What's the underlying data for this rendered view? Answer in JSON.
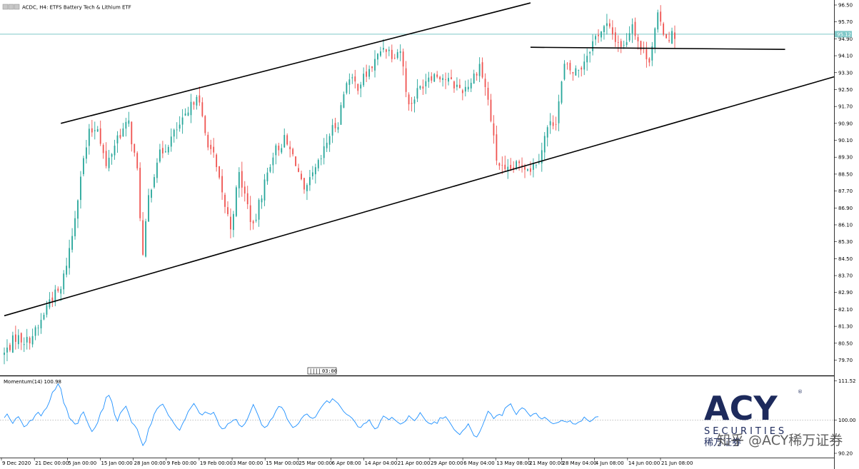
{
  "header": {
    "symbol_line": "ACDC, H4:  ETFS Battery Tech & Lithium ETF"
  },
  "current_price_label": "95.12",
  "period_label": "03:00",
  "indicator": {
    "label": "Momentum(14) 100.98"
  },
  "logo": {
    "main": "ACY",
    "sub": "SECURITIES",
    "cn": "稀万证券",
    "reg": "®"
  },
  "watermark": "知乎 @ACY稀万证券",
  "colors": {
    "bull": "#26a69a",
    "bear": "#ef5350",
    "momentum": "#1e90ff",
    "price_line": "#7fc8c8",
    "trendline": "#000000"
  },
  "chart_data": [
    {
      "type": "candlestick",
      "title": "ACDC, H4:  ETFS Battery Tech & Lithium ETF",
      "ylim": [
        79.0,
        96.6
      ],
      "y_ticks": [
        "96.50",
        "95.70",
        "94.90",
        "94.10",
        "93.30",
        "92.50",
        "91.70",
        "90.90",
        "90.10",
        "89.30",
        "88.50",
        "87.70",
        "86.90",
        "86.10",
        "85.30",
        "84.50",
        "83.70",
        "82.90",
        "82.10",
        "81.30",
        "80.50",
        "79.70"
      ],
      "x_ticks": [
        "9 Dec 2020",
        "21 Dec 00:00",
        "5 Jan 00:00",
        "15 Jan 00:00",
        "28 Jan 00:00",
        "9 Feb 00:00",
        "19 Feb 00:00",
        "3 Mar 00:00",
        "15 Mar 00:00",
        "25 Mar 00:00",
        "6 Apr 08:00",
        "14 Apr 04:00",
        "21 Apr 00:00",
        "29 Apr 00:00",
        "6 May 04:00",
        "13 May 08:00",
        "21 May 00:00",
        "28 May 04:00",
        "4 Jun 08:00",
        "14 Jun 00:00",
        "21 Jun 08:00"
      ],
      "current_price": 95.12,
      "close_path": [
        {
          "t": 0,
          "p": 80.0
        },
        {
          "t": 4,
          "p": 80.8
        },
        {
          "t": 8,
          "p": 80.6
        },
        {
          "t": 12,
          "p": 81.2
        },
        {
          "t": 16,
          "p": 82.6
        },
        {
          "t": 20,
          "p": 83.0
        },
        {
          "t": 24,
          "p": 85.6
        },
        {
          "t": 27,
          "p": 88.5
        },
        {
          "t": 30,
          "p": 90.4
        },
        {
          "t": 33,
          "p": 90.8
        },
        {
          "t": 36,
          "p": 88.8
        },
        {
          "t": 40,
          "p": 90.3
        },
        {
          "t": 44,
          "p": 90.9
        },
        {
          "t": 47,
          "p": 88.6
        },
        {
          "t": 49,
          "p": 84.6
        },
        {
          "t": 51,
          "p": 87.4
        },
        {
          "t": 54,
          "p": 89.2
        },
        {
          "t": 57,
          "p": 89.8
        },
        {
          "t": 61,
          "p": 90.6
        },
        {
          "t": 65,
          "p": 91.3
        },
        {
          "t": 68,
          "p": 92.4
        },
        {
          "t": 71,
          "p": 90.4
        },
        {
          "t": 74,
          "p": 89.3
        },
        {
          "t": 77,
          "p": 87.5
        },
        {
          "t": 80,
          "p": 86.0
        },
        {
          "t": 83,
          "p": 88.5
        },
        {
          "t": 86,
          "p": 87.0
        },
        {
          "t": 88,
          "p": 85.9
        },
        {
          "t": 91,
          "p": 87.6
        },
        {
          "t": 95,
          "p": 89.5
        },
        {
          "t": 99,
          "p": 90.1
        },
        {
          "t": 103,
          "p": 89.1
        },
        {
          "t": 106,
          "p": 87.5
        },
        {
          "t": 109,
          "p": 88.4
        },
        {
          "t": 112,
          "p": 89.2
        },
        {
          "t": 115,
          "p": 90.4
        },
        {
          "t": 118,
          "p": 91.0
        },
        {
          "t": 121,
          "p": 93.0
        },
        {
          "t": 125,
          "p": 92.7
        },
        {
          "t": 128,
          "p": 93.2
        },
        {
          "t": 131,
          "p": 93.8
        },
        {
          "t": 134,
          "p": 94.6
        },
        {
          "t": 137,
          "p": 94.2
        },
        {
          "t": 140,
          "p": 94.4
        },
        {
          "t": 143,
          "p": 91.7
        },
        {
          "t": 146,
          "p": 92.4
        },
        {
          "t": 150,
          "p": 93.2
        },
        {
          "t": 154,
          "p": 93.2
        },
        {
          "t": 158,
          "p": 92.8
        },
        {
          "t": 162,
          "p": 92.5
        },
        {
          "t": 165,
          "p": 92.9
        },
        {
          "t": 168,
          "p": 93.7
        },
        {
          "t": 171,
          "p": 92.0
        },
        {
          "t": 174,
          "p": 89.2
        },
        {
          "t": 177,
          "p": 88.5
        },
        {
          "t": 180,
          "p": 88.8
        },
        {
          "t": 183,
          "p": 89.0
        },
        {
          "t": 186,
          "p": 88.8
        },
        {
          "t": 189,
          "p": 89.3
        },
        {
          "t": 192,
          "p": 90.7
        },
        {
          "t": 195,
          "p": 91.1
        },
        {
          "t": 198,
          "p": 93.6
        },
        {
          "t": 201,
          "p": 93.3
        },
        {
          "t": 204,
          "p": 93.6
        },
        {
          "t": 207,
          "p": 94.5
        },
        {
          "t": 210,
          "p": 95.2
        },
        {
          "t": 213,
          "p": 95.5
        },
        {
          "t": 216,
          "p": 94.9
        },
        {
          "t": 219,
          "p": 94.5
        },
        {
          "t": 222,
          "p": 95.7
        },
        {
          "t": 225,
          "p": 94.4
        },
        {
          "t": 228,
          "p": 94.0
        },
        {
          "t": 231,
          "p": 95.9
        },
        {
          "t": 234,
          "p": 95.0
        },
        {
          "t": 237,
          "p": 95.1
        }
      ],
      "trendlines": [
        {
          "name": "upper-channel",
          "points": [
            [
              20,
              90.9
            ],
            [
              186,
              96.6
            ]
          ]
        },
        {
          "name": "lower-channel",
          "points": [
            [
              0,
              81.8
            ],
            [
              205,
              89.7
            ]
          ]
        },
        {
          "name": "resistance",
          "points": [
            [
              186,
              94.5
            ],
            [
              276,
              94.4
            ]
          ]
        }
      ]
    },
    {
      "type": "line",
      "title": "Momentum(14) 100.98",
      "ylim": [
        90.2,
        111.5
      ],
      "y_ticks": [
        "111.52",
        "100.00",
        "90.20"
      ],
      "reference_level": 100.0,
      "series": [
        {
          "values": [
            100.7,
            101.8,
            100.3,
            99.0,
            100.4,
            101.0,
            99.6,
            98.0,
            98.5,
            99.8,
            100.0,
            101.5,
            102.3,
            101.2,
            102.7,
            103.6,
            105.5,
            108.2,
            109.0,
            110.7,
            109.2,
            105.1,
            103.4,
            100.6,
            99.8,
            98.8,
            99.0,
            101.4,
            102.4,
            100.2,
            98.2,
            96.6,
            97.7,
            99.2,
            102.1,
            103.4,
            106.7,
            107.3,
            105.4,
            101.6,
            99.7,
            102.0,
            103.1,
            104.1,
            101.9,
            99.3,
            98.5,
            97.3,
            94.7,
            92.5,
            93.8,
            97.4,
            99.0,
            101.8,
            103.3,
            104.2,
            104.7,
            103.2,
            101.4,
            100.3,
            99.0,
            97.8,
            97.0,
            98.9,
            100.4,
            102.5,
            103.7,
            104.9,
            103.6,
            102.0,
            101.5,
            102.4,
            102.0,
            101.7,
            102.3,
            100.5,
            98.4,
            97.4,
            97.6,
            98.9,
            99.3,
            100.0,
            100.2,
            98.6,
            98.0,
            98.9,
            100.4,
            102.5,
            104.6,
            102.8,
            100.8,
            98.6,
            97.8,
            98.3,
            99.9,
            100.8,
            102.7,
            104.0,
            103.8,
            102.6,
            100.3,
            99.0,
            97.8,
            98.2,
            99.0,
            100.4,
            101.4,
            101.8,
            100.9,
            100.5,
            100.9,
            102.4,
            103.7,
            104.8,
            105.7,
            105.1,
            106.3,
            105.6,
            104.9,
            103.7,
            102.5,
            101.7,
            101.2,
            100.5,
            99.4,
            98.0,
            97.8,
            98.9,
            99.2,
            100.1,
            98.5,
            97.4,
            97.8,
            99.7,
            101.2,
            100.7,
            100.1,
            100.8,
            100.1,
            99.4,
            98.8,
            99.2,
            99.8,
            101.3,
            100.5,
            99.8,
            100.8,
            102.2,
            101.0,
            99.8,
            99.1,
            98.8,
            99.5,
            99.0,
            100.7,
            100.5,
            101.0,
            99.9,
            98.6,
            97.2,
            96.4,
            95.7,
            96.8,
            97.6,
            98.9,
            97.2,
            95.4,
            95.0,
            96.4,
            98.3,
            100.4,
            102.6,
            101.8,
            100.4,
            101.3,
            101.7,
            101.3,
            103.5,
            104.2,
            104.8,
            103.0,
            101.6,
            102.9,
            103.6,
            103.2,
            102.1,
            101.1,
            101.8,
            102.0,
            100.9,
            100.3,
            100.8,
            100.2,
            99.4,
            98.9,
            99.1,
            99.4,
            99.9,
            99.6,
            99.4,
            99.8,
            98.9,
            98.8,
            99.4,
            99.7,
            100.9,
            100.1,
            99.5,
            100.1,
            100.9,
            101.0
          ]
        }
      ]
    }
  ]
}
